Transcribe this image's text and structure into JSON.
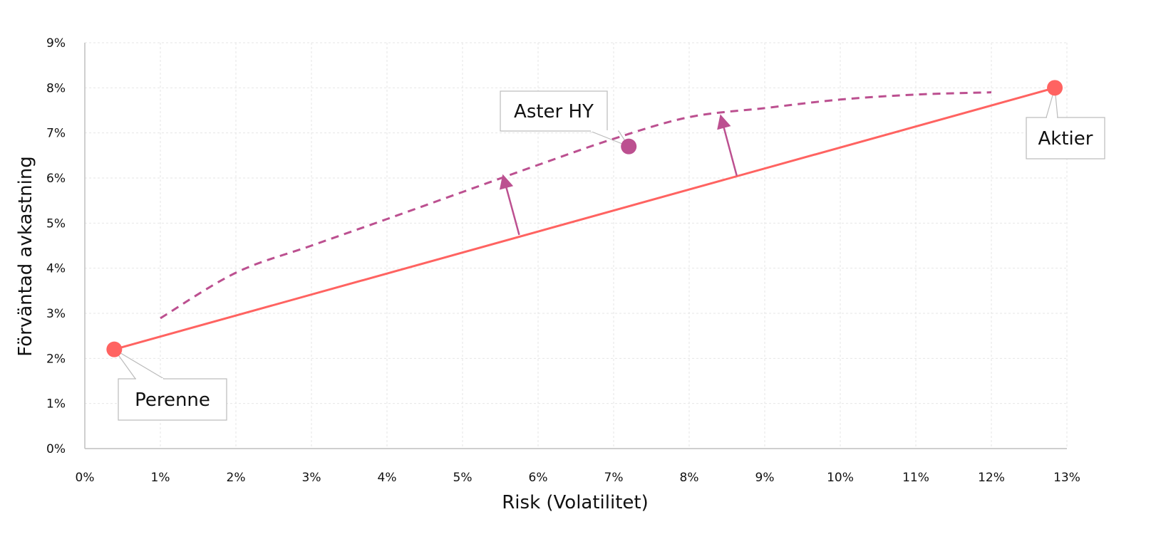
{
  "chart_data": {
    "type": "line",
    "title": "",
    "xlabel": "Risk (Volatilitet)",
    "ylabel": "Förväntad avkastning",
    "xlim": [
      0,
      13
    ],
    "ylim": [
      0,
      9
    ],
    "x_ticks": [
      "0%",
      "1%",
      "2%",
      "3%",
      "4%",
      "5%",
      "6%",
      "7%",
      "8%",
      "9%",
      "10%",
      "11%",
      "12%",
      "13%"
    ],
    "y_ticks": [
      "0%",
      "1%",
      "2%",
      "3%",
      "4%",
      "5%",
      "6%",
      "7%",
      "8%",
      "9%"
    ],
    "grid": true,
    "colors": {
      "solid_line": "#FF6361",
      "dashed_curve": "#BC5090",
      "aster_point": "#BC5090",
      "endpoints": "#FF6361"
    },
    "series": [
      {
        "style": "solid",
        "x": [
          0.39,
          12.84
        ],
        "y": [
          2.2,
          8.0
        ]
      },
      {
        "style": "dashed",
        "x": [
          1,
          2,
          3,
          4,
          5,
          6,
          7,
          8,
          9,
          10,
          11,
          12
        ],
        "y": [
          2.89,
          3.9,
          4.5,
          5.09,
          5.69,
          6.29,
          6.87,
          7.35,
          7.55,
          7.74,
          7.85,
          7.9
        ]
      }
    ],
    "points": [
      {
        "label": "Perenne",
        "x": 0.39,
        "y": 2.2,
        "color": "#FF6361"
      },
      {
        "label": "Aktier",
        "x": 12.84,
        "y": 8.0,
        "color": "#FF6361"
      },
      {
        "label": "Aster HY",
        "x": 7.2,
        "y": 6.7,
        "color": "#BC5090"
      }
    ],
    "arrows": [
      {
        "from": [
          5.75,
          4.74
        ],
        "to": [
          5.55,
          5.97
        ],
        "color": "#BC5090"
      },
      {
        "from": [
          8.63,
          6.05
        ],
        "to": [
          8.43,
          7.3
        ],
        "color": "#BC5090"
      }
    ]
  }
}
